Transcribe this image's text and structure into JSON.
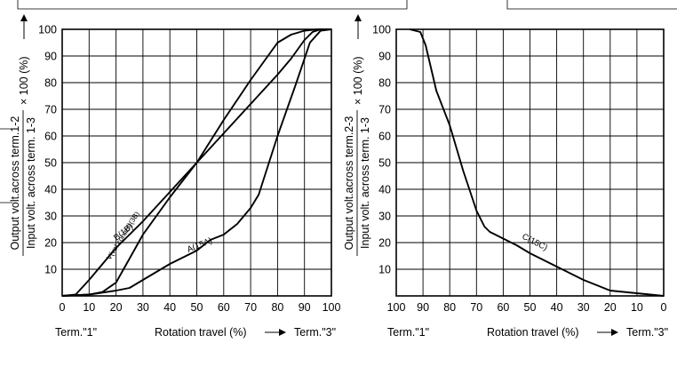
{
  "chart_data": [
    {
      "type": "line",
      "xlim": [
        0,
        100
      ],
      "ylim": [
        0,
        100
      ],
      "x_ticks": [
        "0",
        "10",
        "20",
        "30",
        "40",
        "50",
        "60",
        "70",
        "80",
        "90",
        "100"
      ],
      "y_ticks": [
        "10",
        "20",
        "30",
        "40",
        "50",
        "60",
        "70",
        "80",
        "90",
        "100"
      ],
      "x_left_label": "Term.\"1\"",
      "xlabel": "Rotation travel (%)",
      "x_right_label": "Term.\"3\"",
      "ylabel_numerator": "Output volt.across term.1-2",
      "ylabel_denominator": "Input volt. across term. 1-3",
      "ylabel_factor": "× 100 (%)",
      "grid": true,
      "series": [
        {
          "name": "B(1B)",
          "x": [
            0,
            5,
            10,
            20,
            30,
            40,
            50,
            60,
            70,
            80,
            85,
            90,
            93,
            96,
            100
          ],
          "y": [
            0,
            0.5,
            6,
            18,
            28,
            39,
            50,
            61,
            72,
            83,
            89,
            96,
            99,
            100,
            100
          ]
        },
        {
          "name": "V(vol.control)(3B)",
          "x": [
            0,
            10,
            15,
            20,
            25,
            30,
            40,
            50,
            60,
            70,
            80,
            85,
            90,
            95,
            100
          ],
          "y": [
            0,
            0.5,
            1.5,
            5,
            14,
            23,
            37,
            50,
            66,
            81,
            95,
            98,
            99.5,
            100,
            100
          ]
        },
        {
          "name": "A(15A)",
          "x": [
            0,
            10,
            20,
            25,
            30,
            40,
            50,
            55,
            60,
            65,
            70,
            73,
            80,
            87,
            92,
            96,
            100
          ],
          "y": [
            0,
            0.5,
            2,
            3,
            6,
            12,
            17,
            21,
            23,
            27,
            33,
            38,
            60,
            80,
            95,
            99.5,
            100
          ]
        }
      ]
    },
    {
      "type": "line",
      "xlim": [
        100,
        0
      ],
      "ylim": [
        0,
        100
      ],
      "x_ticks": [
        "100",
        "90",
        "80",
        "70",
        "60",
        "50",
        "40",
        "30",
        "20",
        "10",
        "0"
      ],
      "y_ticks": [
        "10",
        "20",
        "30",
        "40",
        "50",
        "60",
        "70",
        "80",
        "90",
        "100"
      ],
      "x_left_label": "Term.\"1\"",
      "xlabel": "Rotation travel (%)",
      "x_right_label": "Term.\"3\"",
      "ylabel_numerator": "Output volt.across term.2-3",
      "ylabel_denominator": "Input volt. across term. 1-3",
      "ylabel_factor": "× 100 (%)",
      "grid": true,
      "series": [
        {
          "name": "C(15C)",
          "x": [
            95,
            91,
            89,
            85,
            80,
            75,
            70,
            67,
            65,
            60,
            55,
            50,
            40,
            30,
            25,
            20,
            15,
            10,
            5,
            0
          ],
          "y": [
            100,
            99,
            94,
            77,
            64,
            47,
            32,
            26,
            24,
            21.5,
            19,
            16,
            11,
            6,
            4,
            2,
            1.5,
            1,
            0.5,
            0
          ]
        }
      ]
    }
  ]
}
